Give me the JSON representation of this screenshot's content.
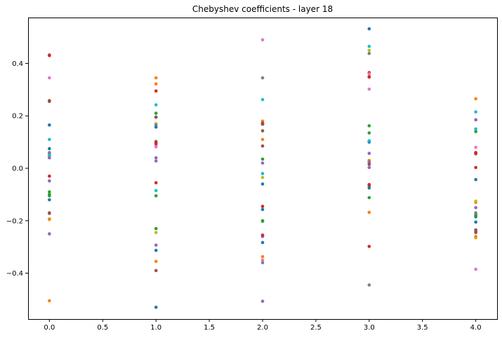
{
  "chart_data": {
    "type": "scatter",
    "title": "Chebyshev coefficients - layer 18",
    "xlabel": "",
    "ylabel": "",
    "xlim": [
      -0.2,
      4.2
    ],
    "ylim": [
      -0.575,
      0.575
    ],
    "xticks": [
      0.0,
      0.5,
      1.0,
      1.5,
      2.0,
      2.5,
      3.0,
      3.5,
      4.0
    ],
    "xtick_labels": [
      "0.0",
      "0.5",
      "1.0",
      "1.5",
      "2.0",
      "2.5",
      "3.0",
      "3.5",
      "4.0"
    ],
    "yticks": [
      -0.4,
      -0.2,
      0.0,
      0.2,
      0.4
    ],
    "ytick_labels": [
      "−0.4",
      "−0.2",
      "0.0",
      "0.2",
      "0.4"
    ],
    "grid": false,
    "legend": "none",
    "x": [
      0,
      1,
      2,
      3,
      4
    ],
    "series": [
      {
        "color": "#1f77b4",
        "values": [
          0.165,
          -0.313,
          -0.157,
          0.532,
          -0.205
        ]
      },
      {
        "color": "#ff7f0e",
        "values": [
          -0.505,
          0.322,
          0.18,
          -0.168,
          0.265
        ]
      },
      {
        "color": "#2ca02c",
        "values": [
          -0.09,
          -0.23,
          -0.2,
          0.162,
          0.14
        ]
      },
      {
        "color": "#d62728",
        "values": [
          0.432,
          0.1,
          0.172,
          -0.298,
          0.003
        ]
      },
      {
        "color": "#9467bd",
        "values": [
          -0.25,
          -0.293,
          -0.507,
          0.057,
          -0.15
        ]
      },
      {
        "color": "#8c564b",
        "values": [
          -0.17,
          -0.39,
          0.085,
          -0.067,
          -0.235
        ]
      },
      {
        "color": "#e377c2",
        "values": [
          0.345,
          0.088,
          0.49,
          0.302,
          -0.385
        ]
      },
      {
        "color": "#7f7f7f",
        "values": [
          0.055,
          0.195,
          0.345,
          -0.445,
          0.055
        ]
      },
      {
        "color": "#bcbd22",
        "values": [
          -0.193,
          0.17,
          -0.035,
          0.45,
          -0.265
        ]
      },
      {
        "color": "#17becf",
        "values": [
          0.11,
          0.242,
          0.262,
          0.465,
          0.215
        ]
      },
      {
        "color": "#1f77b4",
        "values": [
          0.075,
          -0.53,
          -0.283,
          0.1,
          -0.043
        ]
      },
      {
        "color": "#ff7f0e",
        "values": [
          0.04,
          0.345,
          -0.337,
          0.03,
          -0.13
        ]
      },
      {
        "color": "#2ca02c",
        "values": [
          -0.1,
          0.21,
          0.035,
          0.135,
          -0.178
        ]
      },
      {
        "color": "#d62728",
        "values": [
          0.258,
          0.295,
          -0.145,
          0.365,
          0.057
        ]
      },
      {
        "color": "#9467bd",
        "values": [
          -0.048,
          0.028,
          0.02,
          0.003,
          0.185
        ]
      },
      {
        "color": "#8c564b",
        "values": [
          -0.172,
          0.102,
          0.143,
          0.35,
          -0.245
        ]
      },
      {
        "color": "#e377c2",
        "values": [
          0.045,
          0.082,
          -0.35,
          0.36,
          0.08
        ]
      },
      {
        "color": "#7f7f7f",
        "values": [
          0.06,
          0.165,
          -0.36,
          0.438,
          -0.17
        ]
      },
      {
        "color": "#bcbd22",
        "values": [
          0.048,
          -0.245,
          -0.255,
          0.02,
          -0.125
        ]
      },
      {
        "color": "#17becf",
        "values": [
          0.05,
          -0.085,
          -0.02,
          0.105,
          0.15
        ]
      },
      {
        "color": "#1f77b4",
        "values": [
          -0.12,
          0.157,
          -0.06,
          -0.075,
          -0.185
        ]
      },
      {
        "color": "#ff7f0e",
        "values": [
          -0.195,
          -0.355,
          0.11,
          0.02,
          -0.26
        ]
      },
      {
        "color": "#2ca02c",
        "values": [
          -0.105,
          -0.105,
          -0.202,
          -0.112,
          -0.18
        ]
      },
      {
        "color": "#d62728",
        "values": [
          -0.03,
          -0.055,
          0.17,
          -0.062,
          0.058
        ]
      },
      {
        "color": "#9467bd",
        "values": [
          0.04,
          0.04,
          -0.26,
          0.025,
          0.185
        ]
      },
      {
        "color": "#8c564b",
        "values": [
          0.255,
          0.195,
          0.168,
          0.015,
          -0.24
        ]
      },
      {
        "color": "#d62728",
        "values": [
          0.43,
          0.094,
          -0.255,
          0.348,
          0.06
        ]
      }
    ]
  }
}
